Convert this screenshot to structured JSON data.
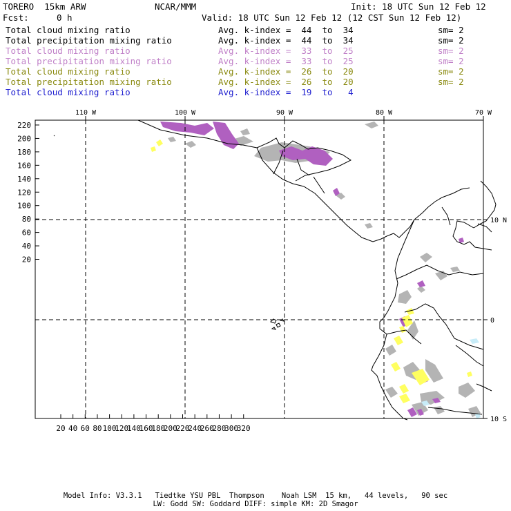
{
  "header": {
    "model": "TORERO  15km ARW",
    "org": "NCAR/MMM",
    "init": "Init: 18 UTC Sun 12 Feb 12",
    "fcst_label": "Fcst:",
    "fcst_value": "0 h",
    "valid": "Valid: 18 UTC Sun 12 Feb 12 (12 CST Sun 12 Feb 12)"
  },
  "fields": [
    {
      "name": "Total cloud mixing ratio",
      "kindex": "Avg. k-index =  44  to  34",
      "sm": "sm= 2",
      "color": "#000000"
    },
    {
      "name": "Total precipitation mixing ratio",
      "kindex": "Avg. k-index =  44  to  34",
      "sm": "sm= 2",
      "color": "#000000"
    },
    {
      "name": "Total cloud mixing ratio",
      "kindex": "Avg. k-index =  33  to  25",
      "sm": "sm= 2",
      "color": "#c080c8"
    },
    {
      "name": "Total precipitation mixing ratio",
      "kindex": "Avg. k-index =  33  to  25",
      "sm": "sm= 2",
      "color": "#c080c8"
    },
    {
      "name": "Total cloud mixing ratio",
      "kindex": "Avg. k-index =  26  to  20",
      "sm": "sm= 2",
      "color": "#8a8a10"
    },
    {
      "name": "Total precipitation mixing ratio",
      "kindex": "Avg. k-index =  26  to  20",
      "sm": "sm= 2",
      "color": "#8a8a10"
    },
    {
      "name": "Total cloud mixing ratio",
      "kindex": "Avg. k-index =  19  to   4",
      "sm": "",
      "color": "#2020d0"
    }
  ],
  "map": {
    "top_lon_labels": [
      "110 W",
      "100 W",
      "90 W",
      "80 W",
      "70 W"
    ],
    "right_lat_labels": [
      "10 N",
      "0",
      "10 S"
    ],
    "y_ticks": [
      "220",
      "200",
      "180",
      "160",
      "140",
      "120",
      "100",
      "80",
      "60",
      "40",
      "20"
    ],
    "x_ticks": [
      "20",
      "40",
      "60",
      "80",
      "100",
      "120",
      "140",
      "160",
      "180",
      "200",
      "220",
      "240",
      "260",
      "280",
      "300",
      "320"
    ],
    "colors": {
      "gray": "#b4b4b4",
      "purple": "#b060c0",
      "yellow": "#ffff60",
      "cyan": "#c8ecf8"
    }
  },
  "footer": {
    "line1": "Model Info: V3.3.1   Tiedtke YSU PBL  Thompson    Noah LSM  15 km,   44 levels,   90 sec",
    "line2": "LW: Godd SW: Goddard DIFF: simple KM: 2D Smagor"
  }
}
